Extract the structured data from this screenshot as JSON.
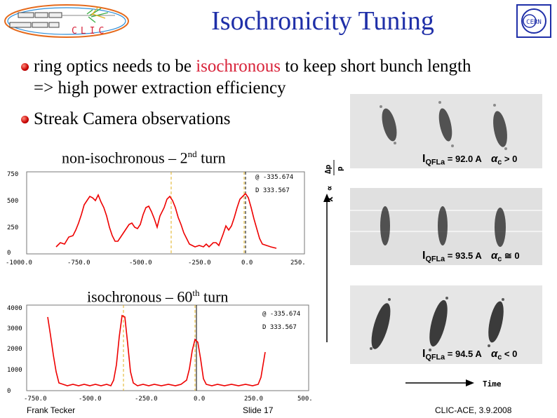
{
  "header": {
    "title": "Isochronicity Tuning",
    "clic_logo_text": "CLIC",
    "cern_logo_text": "CERN"
  },
  "bullets": [
    {
      "text_before": "ring optics needs to be ",
      "highlight": "isochronous",
      "text_after": " to keep short bunch length",
      "line2": "=> high power extraction efficiency"
    },
    {
      "text": "Streak Camera observations"
    }
  ],
  "plot1": {
    "caption_main": "non-isochronous – 2",
    "caption_sup": "nd",
    "caption_end": " turn",
    "readout_1": "@ -335.674",
    "readout_2": "D 333.567",
    "y_ticks": [
      "750",
      "500",
      "250",
      "0"
    ],
    "x_ticks": [
      "-1000.0",
      "-750.0",
      "-500.0",
      "-250.0",
      "0.0",
      "250."
    ]
  },
  "plot2": {
    "caption_main": "isochronous – 60",
    "caption_sup": "th",
    "caption_end": " turn",
    "readout_1": "@ -335.674",
    "readout_2": "D 333.567",
    "y_ticks": [
      "4000",
      "3000",
      "2000",
      "1000",
      "0"
    ],
    "x_ticks": [
      "-750.0",
      "-500.0",
      "-250.0",
      "0.0",
      "250.0",
      "500."
    ]
  },
  "streak": {
    "axis_label_top": "Δp",
    "axis_label_bottom": "p",
    "axis_prefix": "x ∝",
    "time_label": "Time",
    "panels": [
      {
        "current_prefix": "I",
        "current_sub": "QFLa",
        "current_value": "= 92.0 A",
        "alpha": "α",
        "alpha_sub": "c",
        "relation": "> 0"
      },
      {
        "current_prefix": "I",
        "current_sub": "QFLa",
        "current_value": "= 93.5 A",
        "alpha": "α",
        "alpha_sub": "c",
        "relation": "≅ 0"
      },
      {
        "current_prefix": "I",
        "current_sub": "QFLa",
        "current_value": "= 94.5 A",
        "alpha": "α",
        "alpha_sub": "c",
        "relation": "< 0"
      }
    ]
  },
  "footer": {
    "author": "Frank Tecker",
    "slide": "Slide 17",
    "event": "CLIC-ACE, 3.9.2008"
  }
}
